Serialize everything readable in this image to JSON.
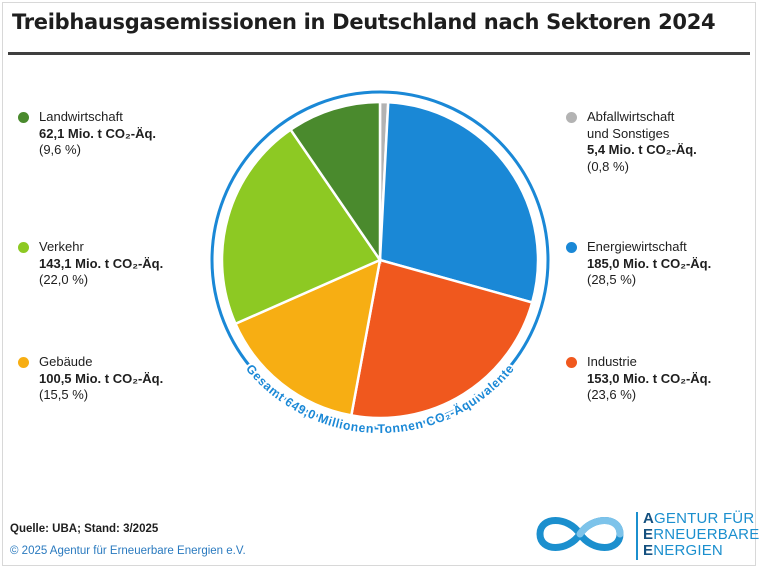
{
  "title": "Treibhausgasemissionen in Deutschland nach Sektoren 2024",
  "colors": {
    "Energiewirtschaft": "#1a88d6",
    "Industrie": "#f0581e",
    "Gebäude": "#f7ae13",
    "Verkehr": "#8dc923",
    "Landwirtschaft": "#4a8a2d",
    "Abfallwirtschaft und Sonstiges": "#b3b3b3",
    "ring": "#1a88d6"
  },
  "chart_data": {
    "type": "pie",
    "title": "Treibhausgasemissionen in Deutschland nach Sektoren 2024",
    "unit": "Mio. t CO₂-Äq.",
    "total_label": "Gesamt 649,0 Millionen Tonnen CO₂-Äquivalente",
    "slices": [
      {
        "label": "Abfallwirtschaft und Sonstiges",
        "value": 5.4,
        "percent": 0.8
      },
      {
        "label": "Energiewirtschaft",
        "value": 185.0,
        "percent": 28.5
      },
      {
        "label": "Industrie",
        "value": 153.0,
        "percent": 23.6
      },
      {
        "label": "Gebäude",
        "value": 100.5,
        "percent": 15.5
      },
      {
        "label": "Verkehr",
        "value": 143.1,
        "percent": 22.0
      },
      {
        "label": "Landwirtschaft",
        "value": 62.1,
        "percent": 9.6
      }
    ]
  },
  "legend": {
    "landwirtschaft": {
      "label": "Landwirtschaft",
      "value": "62,1 Mio. t CO₂-Äq.",
      "pct": "(9,6 %)"
    },
    "verkehr": {
      "label": "Verkehr",
      "value": "143,1 Mio. t CO₂-Äq.",
      "pct": "(22,0 %)"
    },
    "gebaeude": {
      "label": "Gebäude",
      "value": "100,5 Mio. t CO₂-Äq.",
      "pct": "(15,5 %)"
    },
    "abfall": {
      "label1": "Abfallwirtschaft",
      "label2": "und Sonstiges",
      "value": "5,4 Mio. t CO₂-Äq.",
      "pct": "(0,8 %)"
    },
    "energie": {
      "label": "Energiewirtschaft",
      "value": "185,0 Mio. t CO₂-Äq.",
      "pct": "(28,5 %)"
    },
    "industrie": {
      "label": "Industrie",
      "value": "153,0 Mio. t CO₂-Äq.",
      "pct": "(23,6 %)"
    }
  },
  "footer": {
    "source": "Quelle: UBA; Stand: 3/2025",
    "copyright": "© 2025 Agentur für Erneuerbare Energien e.V."
  },
  "logo": {
    "line1_initial": "A",
    "line1_rest": "GENTUR FÜR",
    "line2_initial": "E",
    "line2_rest": "RNEUERBARE",
    "line3_initial": "E",
    "line3_rest": "NERGIEN"
  }
}
